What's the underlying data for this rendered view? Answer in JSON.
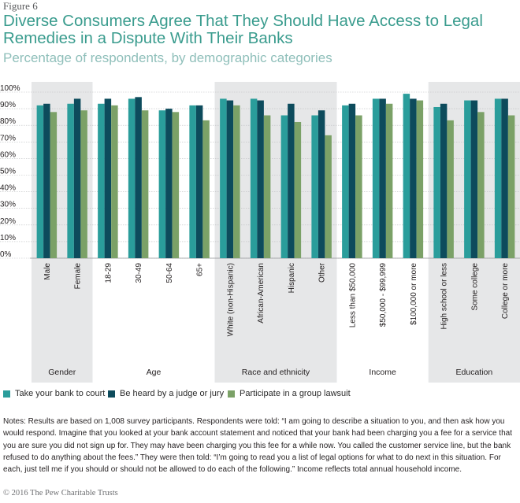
{
  "figure_label": "Figure 6",
  "chart_data": {
    "type": "bar",
    "title": "Diverse Consumers Agree That They Should Have Access to Legal Remedies in a Dispute With Their Banks",
    "subtitle": "Percentage of respondents, by demographic categories",
    "xlabel": "",
    "ylabel": "",
    "ylim": [
      0,
      100
    ],
    "yticks": [
      "0%",
      "10%",
      "20%",
      "30%",
      "40%",
      "50%",
      "60%",
      "70%",
      "80%",
      "90%",
      "100%"
    ],
    "grid": true,
    "legend_position": "bottom",
    "groups": [
      {
        "name": "Gender",
        "categories": [
          "Male",
          "Female"
        ]
      },
      {
        "name": "Age",
        "categories": [
          "18-29",
          "30-49",
          "50-64",
          "65+"
        ]
      },
      {
        "name": "Race and ethnicity",
        "categories": [
          "White (non-Hispanic)",
          "African-American",
          "Hispanic",
          "Other"
        ]
      },
      {
        "name": "Income",
        "categories": [
          "Less than $50,000",
          "$50,000 - $99,999",
          "$100,000 or more"
        ]
      },
      {
        "name": "Education",
        "categories": [
          "High school or less",
          "Some college",
          "College or more"
        ]
      }
    ],
    "series": [
      {
        "name": "Take your bank to court",
        "color": "#2a9d9b",
        "values": [
          92,
          93,
          93,
          96,
          89,
          92,
          96,
          96,
          86,
          86,
          92,
          96,
          99,
          91,
          95,
          96
        ]
      },
      {
        "name": "Be heard by a judge or jury",
        "color": "#0d4b5c",
        "values": [
          93,
          96,
          96,
          97,
          90,
          92,
          95,
          95,
          93,
          89,
          93,
          96,
          96,
          93,
          95,
          96
        ]
      },
      {
        "name": "Participate in a group lawsuit",
        "color": "#7ba167",
        "values": [
          88,
          89,
          92,
          89,
          88,
          83,
          92,
          86,
          82,
          74,
          86,
          93,
          95,
          83,
          88,
          86
        ]
      }
    ]
  },
  "notes": "Notes: Results are based on 1,008 survey participants. Respondents were told: “I am going to describe a situation to you, and then ask how you would respond. Imagine that you looked at your bank account statement and noticed that your bank had been charging you a fee for a service that you are sure you did not sign up for. They may have been charging you this fee for a while now. You called the customer service line, but the bank refused to do anything about the fees.” They were then told: “I’m going to read you a list of legal options for what to do next in this situation. For each, just tell me if you should or should not be allowed to do each of the following.” Income reflects total annual household income.",
  "credit": "© 2016 The Pew Charitable Trusts"
}
